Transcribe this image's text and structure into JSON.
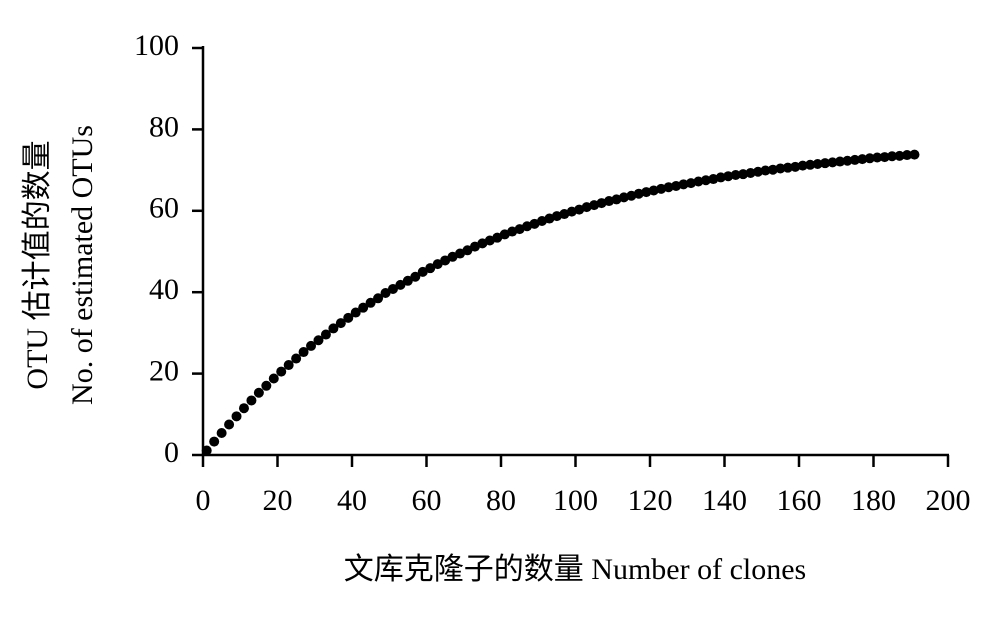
{
  "chart_data": {
    "type": "scatter",
    "x_label": "文库克隆子的数量 Number of clones",
    "y_label": [
      "OTU 估计值的数量",
      "No. of estimated OTUs"
    ],
    "x": [
      1,
      3,
      5,
      7,
      9,
      11,
      13,
      15,
      17,
      19,
      21,
      23,
      25,
      27,
      29,
      31,
      33,
      35,
      37,
      39,
      41,
      43,
      45,
      47,
      49,
      51,
      53,
      55,
      57,
      59,
      61,
      63,
      65,
      67,
      69,
      71,
      73,
      75,
      77,
      79,
      81,
      83,
      85,
      87,
      89,
      91,
      93,
      95,
      97,
      99,
      101,
      103,
      105,
      107,
      109,
      111,
      113,
      115,
      117,
      119,
      121,
      123,
      125,
      127,
      129,
      131,
      133,
      135,
      137,
      139,
      141,
      143,
      145,
      147,
      149,
      151,
      153,
      155,
      157,
      159,
      161,
      163,
      165,
      167,
      169,
      171,
      173,
      175,
      177,
      179,
      181,
      183,
      185,
      187,
      189,
      191
    ],
    "values": [
      1.1,
      3.3,
      5.4,
      7.5,
      9.5,
      11.5,
      13.4,
      15.3,
      17.0,
      18.8,
      20.5,
      22.1,
      23.7,
      25.3,
      26.8,
      28.2,
      29.6,
      31.1,
      32.4,
      33.7,
      35.0,
      36.2,
      37.4,
      38.5,
      39.8,
      40.8,
      41.8,
      42.8,
      43.8,
      45.0,
      45.9,
      46.9,
      47.8,
      48.7,
      49.5,
      50.3,
      51.2,
      52.0,
      52.7,
      53.4,
      54.2,
      54.9,
      55.5,
      56.2,
      56.8,
      57.5,
      58.1,
      58.7,
      59.2,
      59.8,
      60.3,
      60.9,
      61.4,
      61.9,
      62.4,
      62.8,
      63.3,
      63.7,
      64.2,
      64.6,
      65.0,
      65.4,
      65.8,
      66.1,
      66.5,
      66.8,
      67.2,
      67.5,
      67.8,
      68.2,
      68.5,
      68.8,
      69.0,
      69.3,
      69.6,
      69.9,
      70.1,
      70.4,
      70.6,
      70.8,
      71.1,
      71.3,
      71.5,
      71.7,
      71.9,
      72.1,
      72.3,
      72.5,
      72.7,
      72.9,
      73.1,
      73.2,
      73.4,
      73.5,
      73.7,
      73.8
    ],
    "color": "#000000",
    "xlim": [
      0,
      200
    ],
    "xticks": [
      0,
      20,
      40,
      60,
      80,
      100,
      120,
      140,
      160,
      180,
      200
    ],
    "ylim": [
      0,
      100
    ],
    "yticks": [
      0,
      20,
      40,
      60,
      80,
      100
    ]
  }
}
